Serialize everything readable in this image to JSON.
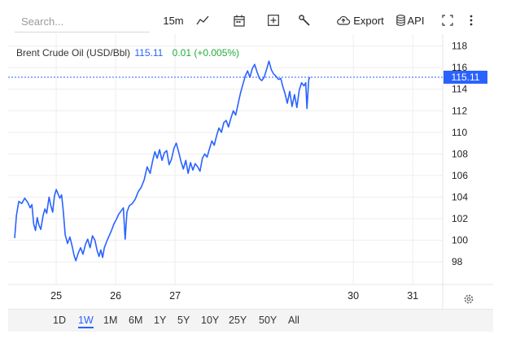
{
  "toolbar": {
    "search_placeholder": "Search...",
    "interval": "15m",
    "export_label": "Export",
    "api_label": "API",
    "icons": [
      "chart-type-icon",
      "calendar-icon",
      "add-indicator-icon",
      "tools-icon",
      "export-cloud-icon",
      "database-icon",
      "fullscreen-icon",
      "more-icon"
    ]
  },
  "legend": {
    "name": "Brent Crude Oil (USD/Bbl)",
    "price": "115.11",
    "change": "0.01 (+0.005%)"
  },
  "price_tag": "115.11",
  "colors": {
    "line": "#2962ff",
    "up": "#22ab3e",
    "grid": "#eeeeee"
  },
  "ranges": [
    "1D",
    "1W",
    "1M",
    "6M",
    "1Y",
    "5Y",
    "10Y",
    "25Y",
    "50Y",
    "All"
  ],
  "active_range": "1W",
  "chart_data": {
    "type": "line",
    "title": "",
    "xlabel": "",
    "ylabel": "",
    "ylim": [
      96.5,
      118.5
    ],
    "yticks": [
      98,
      100,
      102,
      104,
      106,
      108,
      110,
      112,
      114,
      116,
      118
    ],
    "xticks": [
      {
        "label": "25",
        "x": 25
      },
      {
        "label": "26",
        "x": 26
      },
      {
        "label": "27",
        "x": 27
      },
      {
        "label": "30",
        "x": 30
      },
      {
        "label": "31",
        "x": 31
      }
    ],
    "xlim": [
      24.3,
      31.45
    ],
    "last_price": 115.11,
    "grid": true,
    "series": [
      {
        "values": [
          [
            24.3,
            100.2
          ],
          [
            24.33,
            102.3
          ],
          [
            24.37,
            103.6
          ],
          [
            24.42,
            103.4
          ],
          [
            24.47,
            103.9
          ],
          [
            24.52,
            103.5
          ],
          [
            24.56,
            103.0
          ],
          [
            24.59,
            103.3
          ],
          [
            24.62,
            101.5
          ],
          [
            24.65,
            100.9
          ],
          [
            24.68,
            102.1
          ],
          [
            24.71,
            101.4
          ],
          [
            24.74,
            101.0
          ],
          [
            24.78,
            102.3
          ],
          [
            24.81,
            102.9
          ],
          [
            24.84,
            102.5
          ],
          [
            24.88,
            104.0
          ],
          [
            24.91,
            103.2
          ],
          [
            24.94,
            102.6
          ],
          [
            24.97,
            104.1
          ],
          [
            25.0,
            104.7
          ],
          [
            25.03,
            104.3
          ],
          [
            25.06,
            103.9
          ],
          [
            25.09,
            104.2
          ],
          [
            25.12,
            102.6
          ],
          [
            25.15,
            100.5
          ],
          [
            25.19,
            99.7
          ],
          [
            25.23,
            100.3
          ],
          [
            25.27,
            99.4
          ],
          [
            25.3,
            98.6
          ],
          [
            25.33,
            98.1
          ],
          [
            25.37,
            98.8
          ],
          [
            25.41,
            99.3
          ],
          [
            25.45,
            98.7
          ],
          [
            25.49,
            99.6
          ],
          [
            25.53,
            100.1
          ],
          [
            25.57,
            99.3
          ],
          [
            25.61,
            100.4
          ],
          [
            25.65,
            100.0
          ],
          [
            25.69,
            99.0
          ],
          [
            25.72,
            98.5
          ],
          [
            25.75,
            99.1
          ],
          [
            25.78,
            98.4
          ],
          [
            25.81,
            99.3
          ],
          [
            25.85,
            99.9
          ],
          [
            25.89,
            100.4
          ],
          [
            25.93,
            100.9
          ],
          [
            25.97,
            101.5
          ],
          [
            26.01,
            101.9
          ],
          [
            26.05,
            102.4
          ],
          [
            26.09,
            102.7
          ],
          [
            26.13,
            103.0
          ],
          [
            26.16,
            100.1
          ],
          [
            26.19,
            102.6
          ],
          [
            26.23,
            103.2
          ],
          [
            26.28,
            103.4
          ],
          [
            26.33,
            103.8
          ],
          [
            26.38,
            104.5
          ],
          [
            26.43,
            104.9
          ],
          [
            26.48,
            105.6
          ],
          [
            26.53,
            106.8
          ],
          [
            26.58,
            106.2
          ],
          [
            26.62,
            107.3
          ],
          [
            26.66,
            108.2
          ],
          [
            26.7,
            107.6
          ],
          [
            26.74,
            108.4
          ],
          [
            26.78,
            107.4
          ],
          [
            26.82,
            108.1
          ],
          [
            26.86,
            108.3
          ],
          [
            26.9,
            107.0
          ],
          [
            26.94,
            107.5
          ],
          [
            26.98,
            108.5
          ],
          [
            27.02,
            109.0
          ],
          [
            27.06,
            108.2
          ],
          [
            27.1,
            107.3
          ],
          [
            27.14,
            106.6
          ],
          [
            27.18,
            107.4
          ],
          [
            27.22,
            106.2
          ],
          [
            27.26,
            107.2
          ],
          [
            27.3,
            106.5
          ],
          [
            27.34,
            107.1
          ],
          [
            27.38,
            106.8
          ],
          [
            27.42,
            106.4
          ],
          [
            27.46,
            107.6
          ],
          [
            27.5,
            108.0
          ],
          [
            27.54,
            107.7
          ],
          [
            27.58,
            108.5
          ],
          [
            27.62,
            109.2
          ],
          [
            27.66,
            108.8
          ],
          [
            27.7,
            109.7
          ],
          [
            27.74,
            110.4
          ],
          [
            27.78,
            110.0
          ],
          [
            27.82,
            110.9
          ],
          [
            27.86,
            111.1
          ],
          [
            27.9,
            110.5
          ],
          [
            27.94,
            111.3
          ],
          [
            27.98,
            112.0
          ],
          [
            28.02,
            111.6
          ],
          [
            28.06,
            112.6
          ],
          [
            28.1,
            113.6
          ],
          [
            28.14,
            114.4
          ],
          [
            28.18,
            115.2
          ],
          [
            28.22,
            115.7
          ],
          [
            28.26,
            115.1
          ],
          [
            28.3,
            115.9
          ],
          [
            28.34,
            116.3
          ],
          [
            28.38,
            115.6
          ],
          [
            28.42,
            115.0
          ],
          [
            28.46,
            114.8
          ],
          [
            28.5,
            115.1
          ],
          [
            28.54,
            115.8
          ],
          [
            28.58,
            116.6
          ],
          [
            28.62,
            115.8
          ],
          [
            28.66,
            115.4
          ],
          [
            28.7,
            115.2
          ],
          [
            28.74,
            114.9
          ],
          [
            28.78,
            115.0
          ],
          [
            28.81,
            114.3
          ],
          [
            28.85,
            113.6
          ],
          [
            28.89,
            112.7
          ],
          [
            28.93,
            113.8
          ],
          [
            28.97,
            112.4
          ],
          [
            29.01,
            113.5
          ],
          [
            29.05,
            112.3
          ],
          [
            29.09,
            113.9
          ],
          [
            29.13,
            114.6
          ],
          [
            29.17,
            114.3
          ],
          [
            29.2,
            114.6
          ],
          [
            29.22,
            112.2
          ],
          [
            29.25,
            114.9
          ],
          [
            29.27,
            115.11
          ]
        ]
      }
    ]
  }
}
